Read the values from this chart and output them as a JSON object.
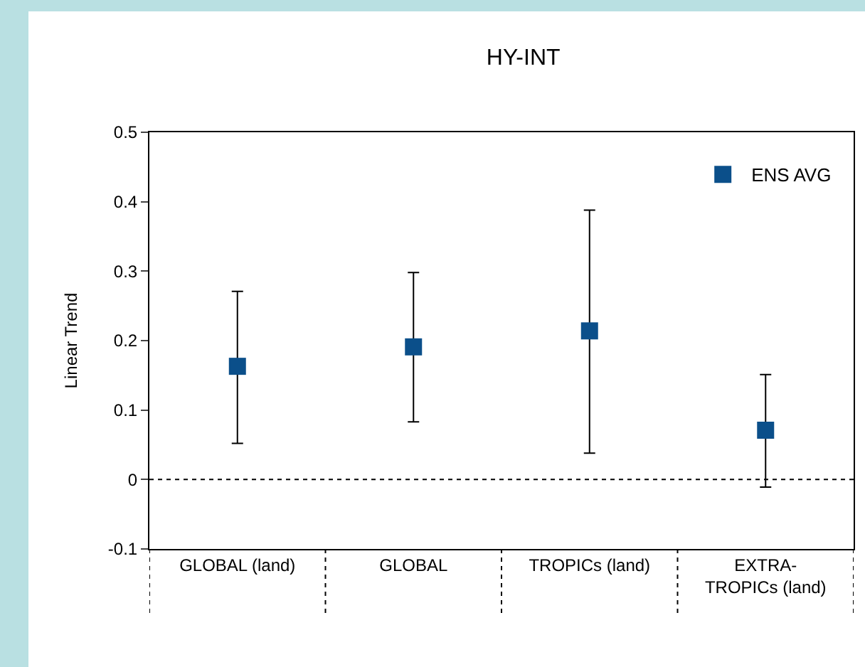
{
  "chart_data": {
    "type": "scatter",
    "title": "HY-INT",
    "ylabel": "Linear Trend",
    "categories": [
      "GLOBAL (land)",
      "GLOBAL",
      "TROPICs (land)",
      "EXTRA-\nTROPICs (land)"
    ],
    "series": [
      {
        "name": "ENS AVG",
        "color": "#0b4f8a",
        "values": [
          0.163,
          0.191,
          0.214,
          0.071
        ],
        "errors": [
          [
            0.052,
            0.271
          ],
          [
            0.083,
            0.298
          ],
          [
            0.038,
            0.388
          ],
          [
            -0.011,
            0.151
          ]
        ]
      }
    ],
    "ylim": [
      -0.1,
      0.5
    ],
    "yticks": [
      -0.1,
      0,
      0.1,
      0.2,
      0.3,
      0.4,
      0.5
    ],
    "ref_lines": [
      {
        "axis": "y",
        "value": 0,
        "line_style": "dotted",
        "color": "#000000"
      }
    ],
    "marker": "square",
    "grid": false,
    "legend": "top right"
  }
}
